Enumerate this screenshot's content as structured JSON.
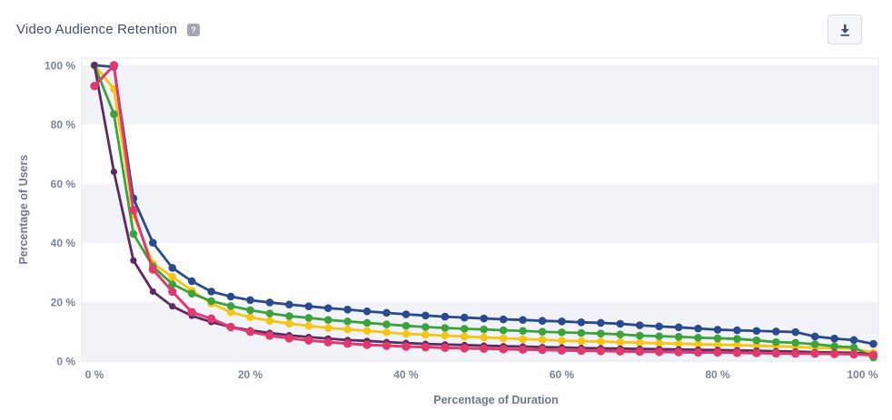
{
  "header": {
    "title": "Video Audience Retention",
    "help_icon": "?",
    "download_button_tooltip": "Download"
  },
  "colors": {
    "axis_text": "#7b8396",
    "title_text": "#464e5e",
    "plot_border": "#e4e7ee",
    "stripe": "#f2f3f8",
    "background": "#ffffff",
    "download_icon": "#48525f"
  },
  "chart_data": {
    "type": "line",
    "title": "Video Audience Retention",
    "xlabel": "Percentage of Duration",
    "ylabel": "Percentage of Users",
    "xlim": [
      0,
      100
    ],
    "ylim": [
      0,
      100
    ],
    "grid": "striped-horizontal-bands",
    "legend_position": "none",
    "marker": "circle",
    "x_tick_values": [
      0,
      20,
      40,
      60,
      80,
      100
    ],
    "x_tick_labels": [
      "0 %",
      "20 %",
      "40 %",
      "60 %",
      "80 %",
      "100 %"
    ],
    "y_tick_values": [
      0,
      20,
      40,
      60,
      80,
      100
    ],
    "y_tick_labels": [
      "0 %",
      "20 %",
      "40 %",
      "60 %",
      "80 %",
      "100 %"
    ],
    "x": [
      0,
      2.5,
      5,
      7.5,
      10,
      12.5,
      15,
      17.5,
      20,
      22.5,
      25,
      27.5,
      30,
      32.5,
      35,
      37.5,
      40,
      42.5,
      45,
      47.5,
      50,
      52.5,
      55,
      57.5,
      60,
      62.5,
      65,
      67.5,
      70,
      72.5,
      75,
      77.5,
      80,
      82.5,
      85,
      87.5,
      90,
      92.5,
      95,
      97.5,
      100
    ],
    "series": [
      {
        "name": "navy",
        "color": "#2a4a8f",
        "line_width": 2.8,
        "dot_radius": 4.3,
        "values": [
          100,
          99.5,
          55,
          40,
          31.5,
          27,
          23.5,
          21.8,
          20.6,
          19.8,
          19.1,
          18.5,
          17.9,
          17.4,
          16.8,
          16.3,
          15.8,
          15.4,
          15,
          14.7,
          14.4,
          14.1,
          13.9,
          13.6,
          13.4,
          13.1,
          12.9,
          12.6,
          12.1,
          11.7,
          11.4,
          11,
          10.6,
          10.4,
          10.2,
          10,
          9.8,
          8.3,
          7.6,
          7.1,
          5.8
        ]
      },
      {
        "name": "yellow",
        "color": "#f6c513",
        "line_width": 2.8,
        "dot_radius": 4.3,
        "values": [
          100,
          92,
          49.5,
          33,
          28.5,
          23.8,
          19.5,
          16.5,
          14.8,
          13.6,
          12.7,
          11.9,
          11.2,
          10.7,
          10.2,
          9.7,
          9.2,
          8.9,
          8.6,
          8.3,
          8,
          7.7,
          7.4,
          7.2,
          6.9,
          6.7,
          6.6,
          6.4,
          6.2,
          6,
          5.9,
          5.7,
          5.5,
          5.4,
          5.2,
          5,
          4.8,
          4.5,
          4.3,
          4.2,
          2.8
        ]
      },
      {
        "name": "green",
        "color": "#3ba23c",
        "line_width": 2.8,
        "dot_radius": 4.3,
        "values": [
          100,
          83.5,
          43,
          32,
          26,
          22.8,
          20.3,
          18.6,
          17.2,
          16.1,
          15.2,
          14.6,
          13.9,
          13.4,
          12.9,
          12.4,
          11.9,
          11.5,
          11.2,
          10.9,
          10.7,
          10.4,
          10.2,
          9.9,
          9.7,
          9.5,
          9.3,
          9,
          8.6,
          8.4,
          8.2,
          7.9,
          7.7,
          7.5,
          7,
          6.4,
          6.2,
          5.7,
          5,
          4.6,
          1.2
        ]
      },
      {
        "name": "purple",
        "color": "#5d2a63",
        "line_width": 2.8,
        "dot_radius": 3.6,
        "values": [
          100,
          64,
          34,
          23.5,
          18.5,
          15.3,
          13.2,
          11.5,
          10.4,
          9.5,
          8.7,
          8.1,
          7.6,
          7.1,
          6.8,
          6.4,
          6.1,
          5.8,
          5.6,
          5.4,
          5.2,
          5,
          4.9,
          4.7,
          4.6,
          4.4,
          4.3,
          4.2,
          4.1,
          4,
          3.9,
          3.8,
          3.7,
          3.6,
          3.5,
          3.3,
          3.2,
          3,
          2.9,
          2.8,
          2.2
        ]
      },
      {
        "name": "pink",
        "color": "#e0396d",
        "line_width": 3,
        "dot_radius": 4.7,
        "values": [
          93,
          100,
          51,
          31,
          23.5,
          16.5,
          14.3,
          11.5,
          9.9,
          8.6,
          7.7,
          7,
          6.4,
          5.9,
          5.5,
          5.2,
          4.9,
          4.7,
          4.5,
          4.3,
          4.2,
          4,
          3.9,
          3.8,
          3.6,
          3.5,
          3.4,
          3.3,
          3.2,
          3.1,
          3,
          2.9,
          2.9,
          2.8,
          2.7,
          2.6,
          2.5,
          2.5,
          2.4,
          2.3,
          2
        ]
      }
    ]
  }
}
